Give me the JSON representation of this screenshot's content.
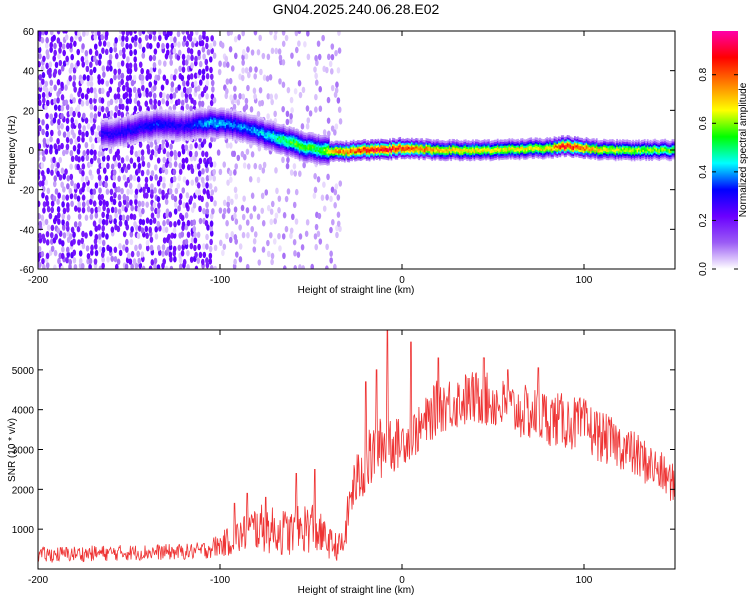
{
  "chart_data": [
    {
      "type": "heatmap",
      "title": "GN04.2025.240.06.28.E02",
      "xlabel": "Height of straight line (km)",
      "ylabel": "Frequency (Hz)",
      "xlim": [
        -200,
        150
      ],
      "ylim": [
        -60,
        60
      ],
      "x_ticks": [
        -200,
        -100,
        0,
        100
      ],
      "y_ticks": [
        -60,
        -40,
        -20,
        0,
        20,
        40,
        60
      ],
      "grid": false,
      "colorbar": {
        "label": "Normalized spectral amplitude",
        "range": [
          0,
          0.98
        ],
        "ticks": [
          0.0,
          0.2,
          0.4,
          0.6,
          0.8
        ],
        "tick_labels": [
          "0.0",
          "0.2",
          "0.4",
          "0.6",
          "0.8"
        ],
        "colormap": [
          "#ffffff",
          "#9b5cf5",
          "#6a00ff",
          "#0000ff",
          "#00ffff",
          "#00ff00",
          "#ffff00",
          "#ff8000",
          "#ff0000",
          "#ff00aa"
        ]
      },
      "ridge": {
        "description_points_x": [
          -160,
          -135,
          -120,
          -105,
          -95,
          -85,
          -75,
          -65,
          -55,
          -45,
          -35,
          -20,
          -10,
          0,
          20,
          50,
          80,
          90,
          110,
          150
        ],
        "frequency_hz": [
          8,
          13,
          12,
          14,
          13,
          11,
          8,
          5,
          2,
          0,
          -1,
          0,
          0,
          1,
          0,
          0,
          1,
          2,
          0,
          0
        ],
        "peak_amplitude": [
          0.3,
          0.35,
          0.3,
          0.45,
          0.4,
          0.4,
          0.45,
          0.55,
          0.6,
          0.55,
          0.8,
          0.9,
          0.95,
          0.9,
          0.75,
          0.7,
          0.7,
          0.95,
          0.7,
          0.6
        ]
      },
      "noise_region_x": [
        -200,
        -33
      ]
    },
    {
      "type": "line",
      "xlabel": "Height of straight line (km)",
      "ylabel": "SNR (10 * v/v)",
      "xlim": [
        -200,
        150
      ],
      "ylim": [
        0,
        6000
      ],
      "x_ticks": [
        -200,
        -100,
        0,
        100
      ],
      "y_ticks": [
        1000,
        2000,
        3000,
        4000,
        5000
      ],
      "color": "#ee3333",
      "grid": false,
      "series": [
        {
          "x": [
            -200,
            -180,
            -160,
            -140,
            -120,
            -110,
            -100,
            -90,
            -80,
            -70,
            -60,
            -50,
            -40,
            -35,
            -32,
            -28,
            -25,
            -20,
            -15,
            -10,
            -8,
            -5,
            0,
            10,
            20,
            30,
            40,
            50,
            60,
            70,
            80,
            90,
            100,
            110,
            120,
            130,
            140,
            150
          ],
          "values": [
            350,
            380,
            400,
            420,
            430,
            460,
            600,
            800,
            1050,
            950,
            900,
            1100,
            650,
            550,
            600,
            1900,
            2200,
            2600,
            2900,
            3100,
            3400,
            3100,
            3200,
            3500,
            4100,
            4200,
            4300,
            4200,
            4000,
            3900,
            3800,
            3700,
            3600,
            3300,
            3100,
            2800,
            2500,
            2100
          ],
          "spikes": [
            {
              "x": -92,
              "value": 1650
            },
            {
              "x": -85,
              "value": 1900
            },
            {
              "x": -75,
              "value": 1800
            },
            {
              "x": -58,
              "value": 2400
            },
            {
              "x": -48,
              "value": 2500
            },
            {
              "x": -20,
              "value": 4700
            },
            {
              "x": -14,
              "value": 5000
            },
            {
              "x": -8,
              "value": 6000
            },
            {
              "x": 5,
              "value": 5700
            },
            {
              "x": 20,
              "value": 5300
            },
            {
              "x": 45,
              "value": 5300
            },
            {
              "x": 58,
              "value": 5000
            },
            {
              "x": 75,
              "value": 5050
            }
          ],
          "noise_amplitude": [
            200,
            200,
            200,
            200,
            200,
            220,
            300,
            450,
            600,
            600,
            600,
            700,
            400,
            350,
            400,
            700,
            700,
            800,
            800,
            800,
            900,
            700,
            600,
            600,
            700,
            700,
            700,
            700,
            700,
            700,
            700,
            700,
            700,
            650,
            600,
            600,
            550,
            500
          ]
        }
      ]
    }
  ]
}
